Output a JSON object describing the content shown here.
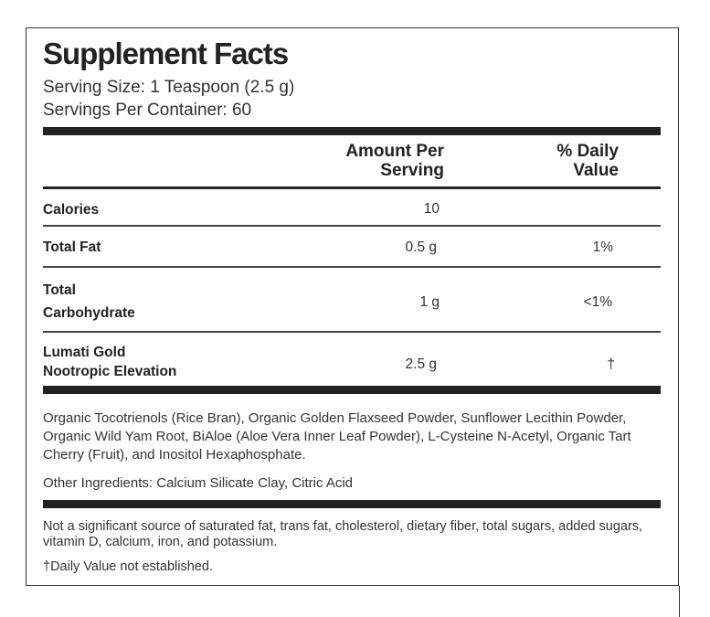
{
  "title": "Supplement Facts",
  "serving_size": "Serving Size: 1 Teaspoon (2.5 g)",
  "servings_per_container": "Servings Per Container: 60",
  "columns": {
    "amount_line1": "Amount Per",
    "amount_line2": "Serving",
    "dv_line1": "% Daily",
    "dv_line2": "Value"
  },
  "rows": [
    {
      "label": "Calories",
      "amount": "10",
      "dv": ""
    },
    {
      "label": "Total Fat",
      "amount": "0.5 g",
      "dv": "1%"
    },
    {
      "label_line1": "Total",
      "label_line2": "Carbohydrate",
      "amount": "1 g",
      "dv": "<1%"
    },
    {
      "label_line1": "Lumati Gold",
      "label_line2": "Nootropic Elevation",
      "amount": "2.5 g",
      "dv": "†"
    }
  ],
  "ingredients": "Organic Tocotrienols (Rice Bran), Organic Golden Flaxseed Powder, Sunflower Lecithin Powder, Organic Wild Yam Root, BiAloe (Aloe Vera Inner Leaf Powder), L-Cysteine N-Acetyl, Organic Tart Cherry (Fruit), and Inositol Hexaphosphate.",
  "other_ingredients": "Other Ingredients: Calcium Silicate Clay, Citric Acid",
  "not_significant": "Not a significant source of saturated fat, trans fat, cholesterol, dietary fiber, total sugars, added sugars, vitamin D, calcium, iron, and potassium.",
  "footnote": "†Daily Value not established."
}
